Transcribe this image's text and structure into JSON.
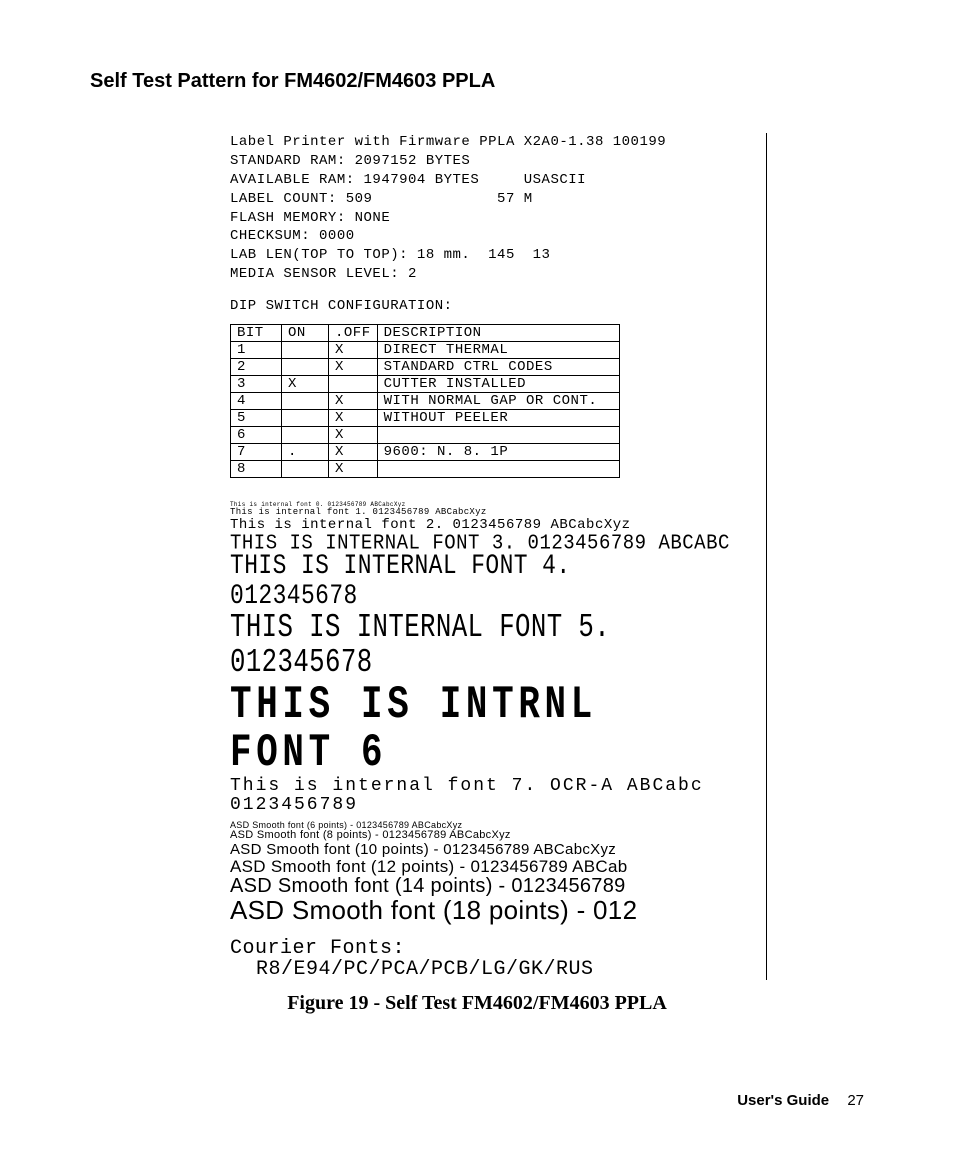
{
  "title": "Self Test Pattern for FM4602/FM4603 PPLA",
  "info": {
    "l1": "Label Printer with Firmware PPLA X2A0-1.38 100199",
    "l2": "STANDARD RAM: 2097152 BYTES",
    "l3": "AVAILABLE RAM: 1947904 BYTES     USASCII",
    "l4": "LABEL COUNT: 509              57 M",
    "l5": "FLASH MEMORY: NONE",
    "l6": "CHECKSUM: 0000",
    "l7": "LAB LEN(TOP TO TOP): 18 mm.  145  13",
    "l8": "MEDIA SENSOR LEVEL: 2"
  },
  "dipTitle": "DIP SWITCH CONFIGURATION:",
  "dipHeaders": {
    "bit": "BIT",
    "on": "ON",
    "off": ".OFF",
    "desc": "DESCRIPTION"
  },
  "dipRows": [
    {
      "bit": "1",
      "on": "",
      "off": "X",
      "desc": "DIRECT THERMAL"
    },
    {
      "bit": "2",
      "on": "",
      "off": "X",
      "desc": "STANDARD CTRL CODES"
    },
    {
      "bit": "3",
      "on": "X",
      "off": "",
      "desc": "CUTTER INSTALLED"
    },
    {
      "bit": "4",
      "on": "",
      "off": "X",
      "desc": "WITH NORMAL GAP OR CONT."
    },
    {
      "bit": "5",
      "on": "",
      "off": "X",
      "desc": "WITHOUT PEELER"
    },
    {
      "bit": "6",
      "on": "",
      "off": "X",
      "desc": ""
    },
    {
      "bit": "7",
      "on": ".",
      "off": "X",
      "desc": "  9600: N. 8. 1P"
    },
    {
      "bit": "8",
      "on": "",
      "off": "X",
      "desc": ""
    }
  ],
  "fonts": {
    "f0": "This is internal font 0. 0123456789 ABCabcXyz",
    "f1": "This is internal font 1. 0123456789 ABCabcXyz",
    "f2": "This is internal font 2. 0123456789 ABCabcXyz",
    "f3": "THIS IS INTERNAL FONT 3. 0123456789 ABCABC",
    "f4": "THIS IS INTERNAL FONT 4. 012345678",
    "f5": "THIS IS INTERNAL FONT 5. 012345678",
    "f6": "THIS IS INTRNL FONT 6",
    "f7a": "This is internal font 7. OCR-A ABCabc",
    "f7b": "0123456789",
    "s6": "ASD Smooth font (6 points) - 0123456789 ABCabcXyz",
    "s8": "ASD Smooth font (8 points) - 0123456789 ABCabcXyz",
    "s10": "ASD Smooth font (10 points) - 0123456789 ABCabcXyz",
    "s12": "ASD Smooth font (12 points) - 0123456789 ABCab",
    "s14": "ASD Smooth font (14 points) - 0123456789",
    "s18": "ASD Smooth font (18 points) - 012",
    "courierHead": "Courier Fonts:",
    "courierBody": "R8/E94/PC/PCA/PCB/LG/GK/RUS"
  },
  "caption": "Figure 19 - Self Test FM4602/FM4603 PPLA",
  "footer": {
    "label": "User's Guide",
    "page": "27"
  }
}
